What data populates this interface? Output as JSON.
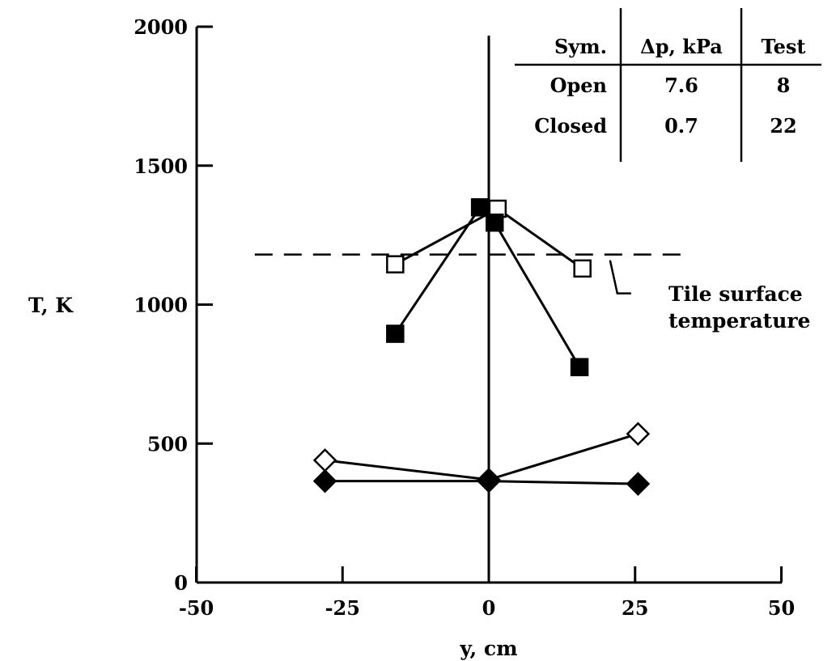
{
  "chart_data": {
    "type": "line",
    "xlabel": "y, cm",
    "ylabel": "T, K",
    "xlim": [
      -50,
      50
    ],
    "ylim": [
      0,
      2000
    ],
    "x_ticks": [
      -50,
      -25,
      0,
      25,
      50
    ],
    "x_tick_labels": [
      "-50",
      "-25",
      "0",
      "25",
      "50"
    ],
    "y_ticks": [
      0,
      500,
      1000,
      1500,
      2000
    ],
    "y_tick_labels": [
      "0",
      "500",
      "1000",
      "1500",
      "2000"
    ],
    "grid": false,
    "series": [
      {
        "marker": "square",
        "filled": false,
        "x": [
          -16,
          1.5,
          16
        ],
        "y": [
          1145,
          1345,
          1130
        ]
      },
      {
        "marker": "square",
        "filled": true,
        "x": [
          -16,
          -1.5,
          1,
          15.5
        ],
        "y": [
          895,
          1350,
          1295,
          775
        ]
      },
      {
        "marker": "diamond",
        "filled": false,
        "x": [
          -28,
          0,
          25.5
        ],
        "y": [
          440,
          370,
          535
        ]
      },
      {
        "marker": "diamond",
        "filled": true,
        "x": [
          -28,
          0,
          25.5
        ],
        "y": [
          365,
          365,
          355
        ]
      }
    ],
    "reference_line": {
      "y": 1180,
      "x_range": [
        -40,
        34
      ],
      "style": "dashed",
      "label_lines": [
        "Tile surface",
        "temperature"
      ]
    },
    "legend_table": {
      "headers": [
        "Sym.",
        "Δp, kPa",
        "Test"
      ],
      "rows": [
        [
          "Open",
          "7.6",
          "8"
        ],
        [
          "Closed",
          "0.7",
          "22"
        ]
      ]
    }
  }
}
